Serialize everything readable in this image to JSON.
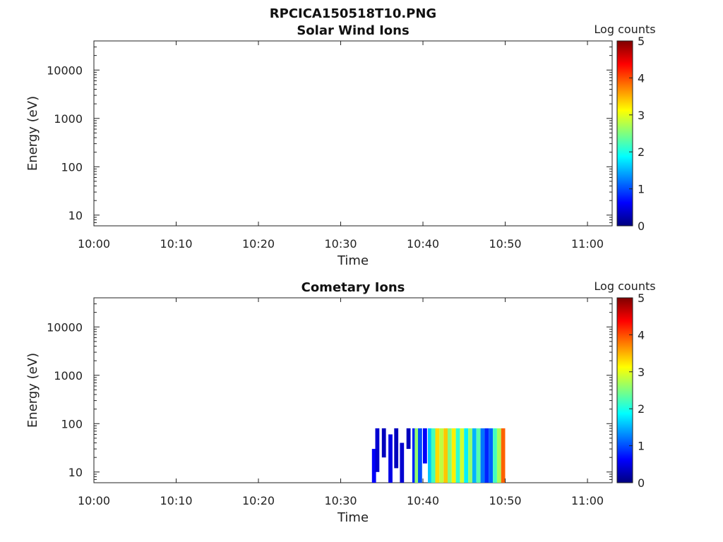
{
  "figure": {
    "title": "RPCICA150518T10.PNG"
  },
  "chart_data": [
    {
      "type": "heatmap",
      "title": "Solar Wind Ions",
      "xlabel": "Time",
      "ylabel": "Energy (eV)",
      "x_ticks": [
        "10:00",
        "10:10",
        "10:20",
        "10:30",
        "10:40",
        "10:50",
        "11:00"
      ],
      "xlim_minutes": [
        0,
        63
      ],
      "y_scale": "log",
      "y_ticks": [
        "10",
        "100",
        "1000",
        "10000"
      ],
      "ylim": [
        6,
        40000
      ],
      "colorbar": {
        "label": "Log counts",
        "ticks": [
          "0",
          "1",
          "2",
          "3",
          "4",
          "5"
        ],
        "range": [
          0,
          5
        ],
        "colormap": "jet"
      },
      "cells": []
    },
    {
      "type": "heatmap",
      "title": "Cometary Ions",
      "xlabel": "Time",
      "ylabel": "Energy (eV)",
      "x_ticks": [
        "10:00",
        "10:10",
        "10:20",
        "10:30",
        "10:40",
        "10:50",
        "11:00"
      ],
      "xlim_minutes": [
        0,
        63
      ],
      "y_scale": "log",
      "y_ticks": [
        "10",
        "100",
        "1000",
        "10000"
      ],
      "ylim": [
        6,
        40000
      ],
      "colorbar": {
        "label": "Log counts",
        "ticks": [
          "0",
          "1",
          "2",
          "3",
          "4",
          "5"
        ],
        "range": [
          0,
          5
        ],
        "colormap": "jet"
      },
      "data_range": {
        "time_start": "10:34",
        "time_end": "10:50",
        "energy_min_eV": 6,
        "energy_max_eV": 80
      },
      "cells": [
        {
          "t": 33.8,
          "e": [
            6,
            30
          ],
          "v": 0.6
        },
        {
          "t": 34.2,
          "e": [
            10,
            80
          ],
          "v": 0.4
        },
        {
          "t": 35.0,
          "e": [
            20,
            80
          ],
          "v": 0.3
        },
        {
          "t": 35.8,
          "e": [
            6,
            60
          ],
          "v": 0.5
        },
        {
          "t": 36.5,
          "e": [
            12,
            80
          ],
          "v": 0.3
        },
        {
          "t": 37.2,
          "e": [
            6,
            40
          ],
          "v": 0.4
        },
        {
          "t": 38.0,
          "e": [
            30,
            80
          ],
          "v": 0.3
        },
        {
          "t": 38.7,
          "e": [
            6,
            80
          ],
          "v": 0.8
        },
        {
          "t": 39.0,
          "e": [
            6,
            80
          ],
          "v": 2.6
        },
        {
          "t": 39.4,
          "e": [
            6,
            80
          ],
          "v": 1.0
        },
        {
          "t": 40.0,
          "e": [
            15,
            80
          ],
          "v": 0.6
        },
        {
          "t": 40.6,
          "e": [
            6,
            80
          ],
          "v": 1.6
        },
        {
          "t": 41.0,
          "e": [
            6,
            80
          ],
          "v": 2.2
        },
        {
          "t": 41.5,
          "e": [
            6,
            80
          ],
          "v": 3.3
        },
        {
          "t": 42.0,
          "e": [
            6,
            80
          ],
          "v": 2.8
        },
        {
          "t": 42.5,
          "e": [
            6,
            80
          ],
          "v": 3.4
        },
        {
          "t": 43.0,
          "e": [
            6,
            80
          ],
          "v": 2.5
        },
        {
          "t": 43.5,
          "e": [
            6,
            80
          ],
          "v": 3.2
        },
        {
          "t": 44.0,
          "e": [
            6,
            80
          ],
          "v": 2.1
        },
        {
          "t": 44.5,
          "e": [
            6,
            80
          ],
          "v": 2.9
        },
        {
          "t": 45.0,
          "e": [
            6,
            80
          ],
          "v": 1.8
        },
        {
          "t": 45.5,
          "e": [
            6,
            80
          ],
          "v": 2.6
        },
        {
          "t": 46.0,
          "e": [
            6,
            80
          ],
          "v": 1.5
        },
        {
          "t": 46.5,
          "e": [
            6,
            80
          ],
          "v": 2.3
        },
        {
          "t": 47.0,
          "e": [
            6,
            80
          ],
          "v": 1.2
        },
        {
          "t": 47.5,
          "e": [
            6,
            80
          ],
          "v": 0.8
        },
        {
          "t": 48.0,
          "e": [
            6,
            80
          ],
          "v": 1.1
        },
        {
          "t": 48.5,
          "e": [
            6,
            80
          ],
          "v": 2.2
        },
        {
          "t": 49.0,
          "e": [
            6,
            80
          ],
          "v": 2.7
        },
        {
          "t": 49.5,
          "e": [
            6,
            80
          ],
          "v": 3.9
        }
      ]
    }
  ]
}
